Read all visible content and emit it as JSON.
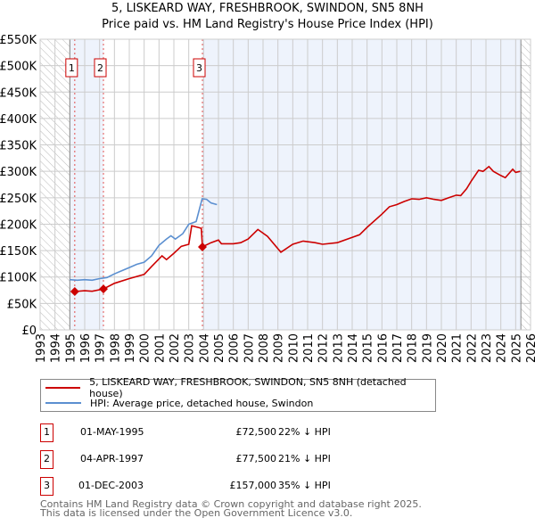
{
  "title_line1": "5, LISKEARD WAY, FRESHBROOK, SWINDON, SN5 8NH",
  "title_line2": "Price paid vs. HM Land Registry's House Price Index (HPI)",
  "chart_data": {
    "type": "line",
    "title": "5, LISKEARD WAY, FRESHBROOK, SWINDON, SN5 8NH — Price paid vs. HM Land Registry's House Price Index (HPI)",
    "xlim": [
      1993,
      2026
    ],
    "ylim": [
      0,
      550000
    ],
    "x_ticks": [
      1993,
      1994,
      1995,
      1996,
      1997,
      1998,
      1999,
      2000,
      2001,
      2002,
      2003,
      2004,
      2005,
      2006,
      2007,
      2008,
      2009,
      2010,
      2011,
      2012,
      2013,
      2014,
      2015,
      2016,
      2017,
      2018,
      2019,
      2020,
      2021,
      2022,
      2023,
      2024,
      2025,
      2026
    ],
    "y_ticks": [
      0,
      50000,
      100000,
      150000,
      200000,
      250000,
      300000,
      350000,
      400000,
      450000,
      500000,
      550000
    ],
    "y_tick_labels": [
      "£0",
      "£50K",
      "£100K",
      "£150K",
      "£200K",
      "£250K",
      "£300K",
      "£350K",
      "£400K",
      "£450K",
      "£500K",
      "£550K"
    ],
    "grid": true,
    "hatched_before": 1995.0,
    "hatched_after": 2025.35,
    "shaded_ranges": [
      [
        1995.0,
        1997.26
      ],
      [
        2003.92,
        2025.35
      ]
    ],
    "colors": {
      "property": "#cc0000",
      "hpi": "#5b8fd0",
      "shade": "#eef3fc"
    },
    "series": [
      {
        "name": "5, LISKEARD WAY, FRESHBROOK, SWINDON, SN5 8NH (detached house)",
        "color": "#cc0000",
        "points": [
          [
            1995.33,
            72.5
          ],
          [
            1996,
            74
          ],
          [
            1996.5,
            73
          ],
          [
            1997.26,
            77.5
          ],
          [
            1998,
            88
          ],
          [
            1999,
            97
          ],
          [
            2000,
            105
          ],
          [
            2000.5,
            120
          ],
          [
            2001.2,
            140
          ],
          [
            2001.5,
            133
          ],
          [
            2002,
            145
          ],
          [
            2002.5,
            158
          ],
          [
            2003,
            162
          ],
          [
            2003.2,
            197
          ],
          [
            2003.75,
            193
          ],
          [
            2003.85,
            192
          ],
          [
            2003.92,
            157
          ],
          [
            2004.5,
            165
          ],
          [
            2005,
            170
          ],
          [
            2005.2,
            163
          ],
          [
            2006,
            163
          ],
          [
            2006.5,
            165
          ],
          [
            2007,
            172
          ],
          [
            2007.65,
            190
          ],
          [
            2008.3,
            177
          ],
          [
            2009.2,
            147
          ],
          [
            2010,
            162
          ],
          [
            2010.7,
            168
          ],
          [
            2011.5,
            165
          ],
          [
            2012,
            162
          ],
          [
            2013,
            165
          ],
          [
            2014,
            175
          ],
          [
            2014.5,
            180
          ],
          [
            2015,
            194
          ],
          [
            2016,
            219
          ],
          [
            2016.5,
            233
          ],
          [
            2017,
            237
          ],
          [
            2017.5,
            243
          ],
          [
            2018,
            248
          ],
          [
            2018.5,
            247
          ],
          [
            2019,
            250
          ],
          [
            2019.5,
            247
          ],
          [
            2020,
            245
          ],
          [
            2020.5,
            250
          ],
          [
            2021,
            255
          ],
          [
            2021.3,
            254
          ],
          [
            2021.7,
            267
          ],
          [
            2022,
            281
          ],
          [
            2022.5,
            302
          ],
          [
            2022.8,
            300
          ],
          [
            2023.2,
            309
          ],
          [
            2023.5,
            300
          ],
          [
            2024,
            292
          ],
          [
            2024.3,
            288
          ],
          [
            2024.8,
            304
          ],
          [
            2025,
            298
          ],
          [
            2025.3,
            300
          ]
        ]
      },
      {
        "name": "HPI: Average price, detached house, Swindon",
        "color": "#5b8fd0",
        "points": [
          [
            1995.0,
            95
          ],
          [
            1995.5,
            94
          ],
          [
            1996,
            95
          ],
          [
            1996.5,
            94
          ],
          [
            1997,
            97
          ],
          [
            1997.5,
            99
          ],
          [
            1998,
            106
          ],
          [
            1998.5,
            112
          ],
          [
            1999,
            118
          ],
          [
            1999.5,
            124
          ],
          [
            2000,
            128
          ],
          [
            2000.5,
            140
          ],
          [
            2001,
            160
          ],
          [
            2001.5,
            172
          ],
          [
            2001.8,
            178
          ],
          [
            2002.1,
            172
          ],
          [
            2002.6,
            182
          ],
          [
            2003,
            200
          ],
          [
            2003.5,
            205
          ],
          [
            2003.9,
            248
          ],
          [
            2004.2,
            247
          ],
          [
            2004.5,
            240
          ],
          [
            2004.9,
            237
          ]
        ]
      }
    ],
    "sales": [
      {
        "label": "1",
        "x": 1995.33,
        "value": 72500
      },
      {
        "label": "2",
        "x": 1997.26,
        "value": 77500
      },
      {
        "label": "3",
        "x": 2003.92,
        "value": 157000
      }
    ]
  },
  "legend": {
    "property_label": "5, LISKEARD WAY, FRESHBROOK, SWINDON, SN5 8NH (detached house)",
    "hpi_label": "HPI: Average price, detached house, Swindon"
  },
  "transactions": [
    {
      "num": "1",
      "date": "01-MAY-1995",
      "price": "£72,500",
      "hpi": "22% ↓ HPI"
    },
    {
      "num": "2",
      "date": "04-APR-1997",
      "price": "£77,500",
      "hpi": "21% ↓ HPI"
    },
    {
      "num": "3",
      "date": "01-DEC-2003",
      "price": "£157,000",
      "hpi": "35% ↓ HPI"
    }
  ],
  "footer_line1": "Contains HM Land Registry data © Crown copyright and database right 2025.",
  "footer_line2": "This data is licensed under the Open Government Licence v3.0."
}
